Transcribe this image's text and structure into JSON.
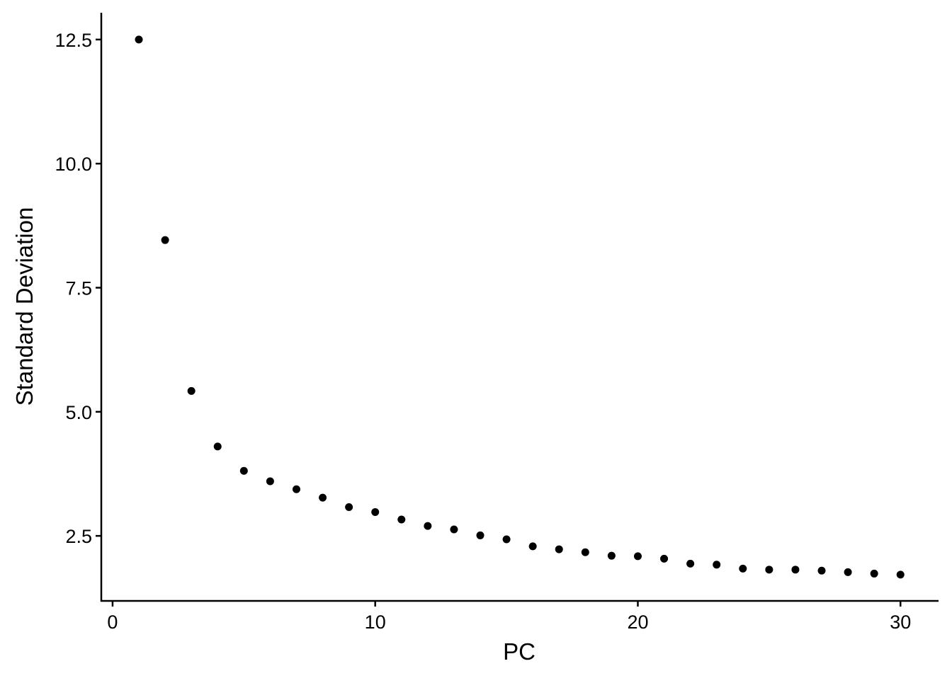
{
  "chart_data": {
    "type": "scatter",
    "x_label": "PC",
    "y_label": "Standard Deviation",
    "x": [
      1,
      2,
      3,
      4,
      5,
      6,
      7,
      8,
      9,
      10,
      11,
      12,
      13,
      14,
      15,
      16,
      17,
      18,
      19,
      20,
      21,
      22,
      23,
      24,
      25,
      26,
      27,
      28,
      29,
      30
    ],
    "series": [
      {
        "color": "#000000",
        "values": [
          12.5,
          8.46,
          5.42,
          4.3,
          3.81,
          3.6,
          3.44,
          3.27,
          3.08,
          2.98,
          2.83,
          2.7,
          2.63,
          2.51,
          2.43,
          2.29,
          2.23,
          2.17,
          2.1,
          2.09,
          2.04,
          1.94,
          1.92,
          1.84,
          1.82,
          1.82,
          1.8,
          1.77,
          1.74,
          1.72
        ]
      }
    ],
    "xlim": [
      -0.43,
      31.45
    ],
    "ylim": [
      1.19,
      13.04
    ],
    "xticks": [
      0,
      10,
      20,
      30
    ],
    "yticks": [
      2.5,
      {
        "value": 5,
        "label": "5.0"
      },
      7.5,
      {
        "value": 10,
        "label": "10.0"
      },
      12.5
    ]
  }
}
